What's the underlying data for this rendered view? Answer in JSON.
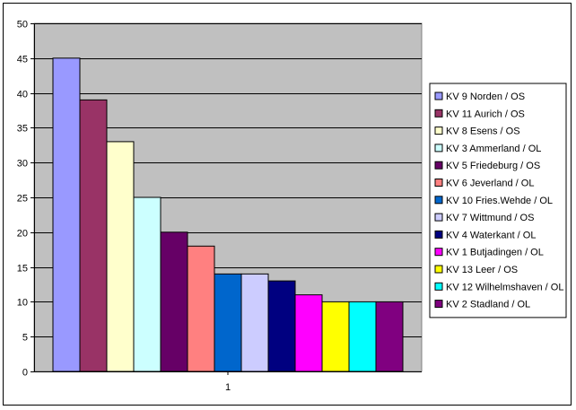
{
  "chart_data": {
    "type": "bar",
    "title": "",
    "xlabel": "",
    "ylabel": "",
    "categories": [
      "1"
    ],
    "ylim": [
      0,
      50
    ],
    "ytick_step": 5,
    "grid": true,
    "plot_background": "#c0c0c0",
    "legend_position": "right",
    "series": [
      {
        "name": "KV 9 Norden / OS",
        "values": [
          45
        ],
        "color": "#9999ff"
      },
      {
        "name": "KV 11 Aurich / OS",
        "values": [
          39
        ],
        "color": "#993366"
      },
      {
        "name": "KV 8 Esens / OS",
        "values": [
          33
        ],
        "color": "#ffffcc"
      },
      {
        "name": "KV 3 Ammerland / OL",
        "values": [
          25
        ],
        "color": "#ccffff"
      },
      {
        "name": "KV 5 Friedeburg / OS",
        "values": [
          20
        ],
        "color": "#660066"
      },
      {
        "name": "KV 6 Jeverland / OL",
        "values": [
          18
        ],
        "color": "#ff8080"
      },
      {
        "name": "KV 10 Fries.Wehde / OL",
        "values": [
          14
        ],
        "color": "#0066cc"
      },
      {
        "name": "KV 7 Wittmund / OS",
        "values": [
          14
        ],
        "color": "#ccccff"
      },
      {
        "name": "KV  4 Waterkant / OL",
        "values": [
          13
        ],
        "color": "#000080"
      },
      {
        "name": "KV 1 Butjadingen / OL",
        "values": [
          11
        ],
        "color": "#ff00ff"
      },
      {
        "name": "KV 13 Leer / OS",
        "values": [
          10
        ],
        "color": "#ffff00"
      },
      {
        "name": "KV 12 Wilhelmshaven / OL",
        "values": [
          10
        ],
        "color": "#00ffff"
      },
      {
        "name": "KV 2 Stadland / OL",
        "values": [
          10
        ],
        "color": "#800080"
      }
    ]
  }
}
